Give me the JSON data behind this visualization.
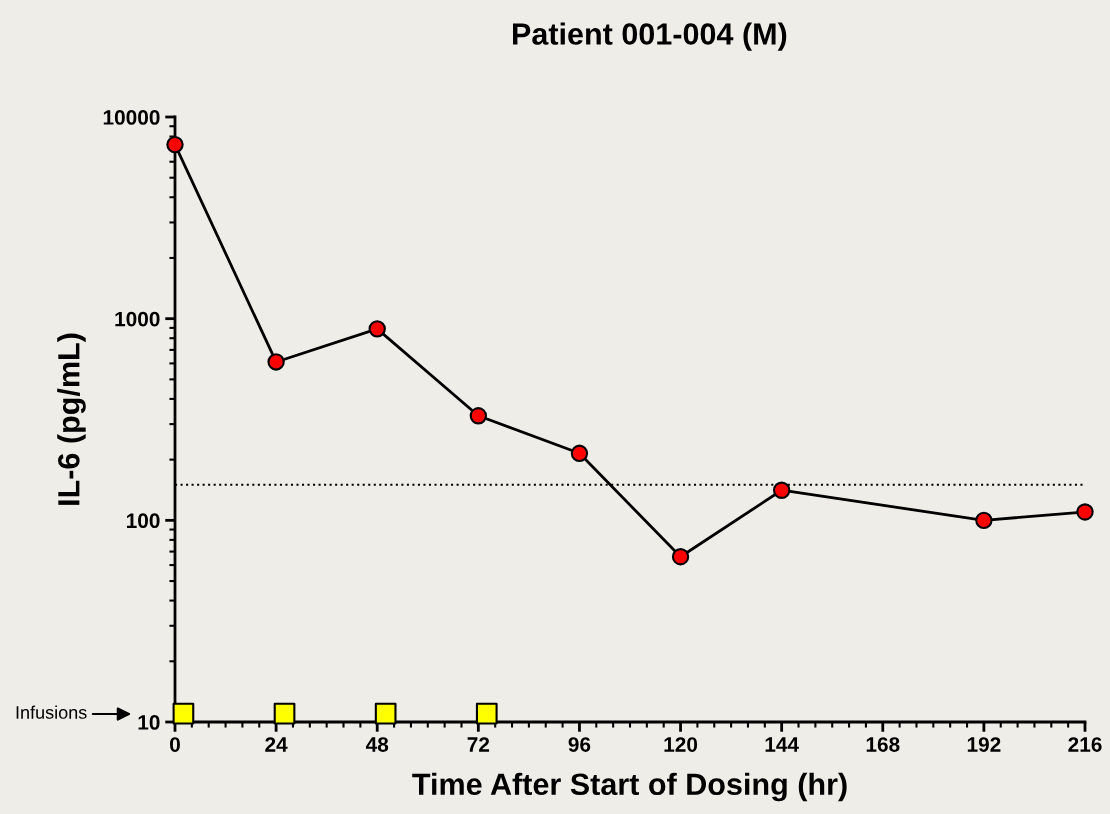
{
  "chart_data": {
    "type": "line",
    "title": "Patient 001-004 (M)",
    "xlabel": "Time After Start of Dosing (hr)",
    "ylabel": "IL-6 (pg/mL)",
    "log": "y",
    "xlim": [
      0,
      216
    ],
    "xticks": [
      0,
      24,
      48,
      72,
      96,
      120,
      144,
      168,
      192,
      216
    ],
    "ylim": [
      10,
      10000
    ],
    "yticks": [
      10,
      100,
      1000,
      10000
    ],
    "grid": false,
    "legend": "bottom left",
    "marker": "circle",
    "line_style": "solid",
    "series": [
      {
        "color": "#ff0000",
        "x": [
          0,
          24,
          48,
          72,
          96,
          120,
          144,
          192,
          216
        ],
        "values": [
          7300,
          610,
          890,
          330,
          215,
          66,
          141,
          100,
          110
        ]
      },
      {
        "name": "Infusions",
        "type": "scatter",
        "marker": "square",
        "color": "#ffff00",
        "x": [
          2,
          26,
          50,
          74
        ],
        "values": [
          11,
          11,
          11,
          11
        ]
      }
    ],
    "ref_lines": [
      {
        "axis": "y",
        "value": 150,
        "line_style": "dotted",
        "color": "#000000"
      }
    ]
  }
}
